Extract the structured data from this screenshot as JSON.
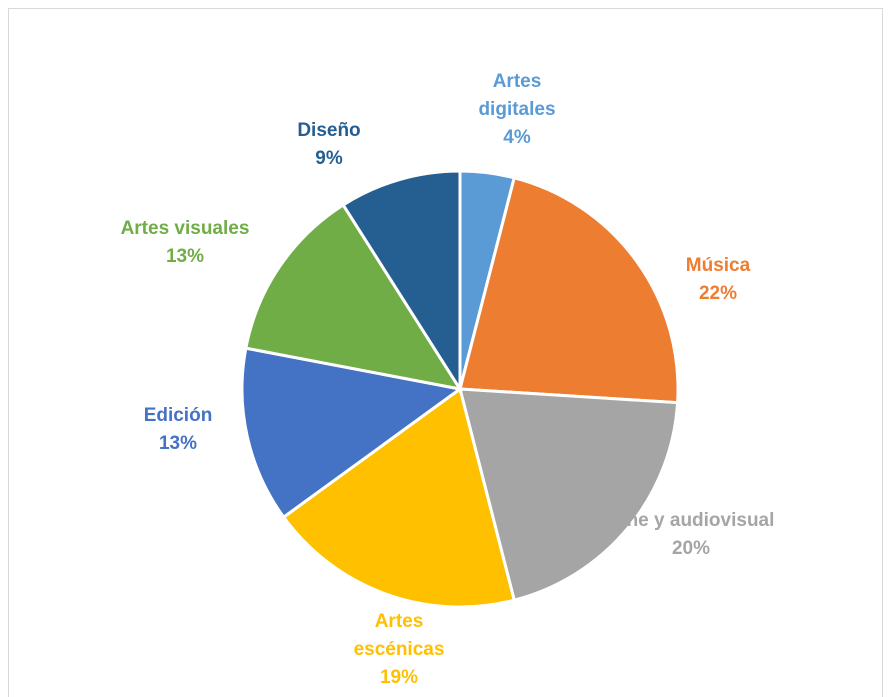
{
  "chart_data": {
    "type": "pie",
    "categories": [
      "Artes digitales",
      "Música",
      "Cine y audiovisual",
      "Artes escénicas",
      "Edición",
      "Artes visuales",
      "Diseño"
    ],
    "values": [
      4,
      22,
      20,
      19,
      13,
      13,
      9
    ],
    "value_labels": [
      "4%",
      "22%",
      "20%",
      "19%",
      "13%",
      "13%",
      "9%"
    ],
    "colors": [
      "#5b9bd5",
      "#ed7d31",
      "#a5a5a5",
      "#ffc000",
      "#4472c4",
      "#70ad47",
      "#255e91"
    ]
  }
}
